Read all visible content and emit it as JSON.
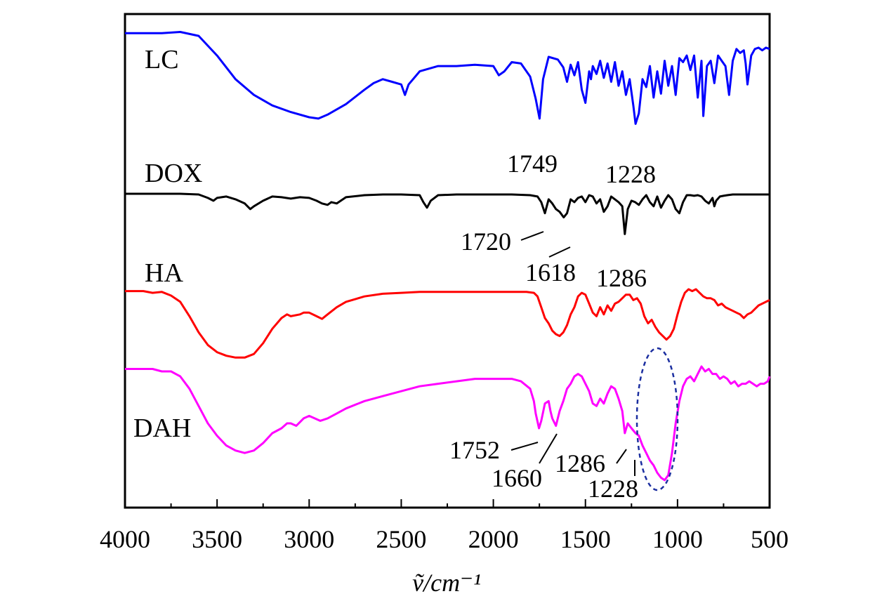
{
  "chart_data": {
    "type": "line",
    "title": "",
    "xlabel": "ṽ/cm⁻¹",
    "ylabel": "",
    "xlim": [
      4000,
      500
    ],
    "x_reversed": true,
    "xticks": [
      "4000",
      "3500",
      "3000",
      "2500",
      "2000",
      "1500",
      "1000",
      "500"
    ],
    "grid": false,
    "legend": "none",
    "series": [
      {
        "name": "LC",
        "color": "#0000ff",
        "x": [
          4000,
          3900,
          3800,
          3700,
          3600,
          3500,
          3400,
          3300,
          3200,
          3100,
          3000,
          2950,
          2900,
          2800,
          2700,
          2650,
          2600,
          2550,
          2500,
          2480,
          2460,
          2400,
          2300,
          2200,
          2100,
          2000,
          1970,
          1940,
          1900,
          1850,
          1800,
          1770,
          1749,
          1730,
          1700,
          1650,
          1620,
          1600,
          1580,
          1560,
          1540,
          1520,
          1500,
          1480,
          1470,
          1460,
          1440,
          1420,
          1400,
          1380,
          1360,
          1340,
          1320,
          1300,
          1280,
          1260,
          1240,
          1228,
          1210,
          1190,
          1170,
          1150,
          1130,
          1110,
          1090,
          1070,
          1050,
          1030,
          1010,
          990,
          970,
          950,
          930,
          910,
          890,
          870,
          860,
          840,
          820,
          800,
          780,
          760,
          740,
          720,
          700,
          680,
          660,
          640,
          630,
          620,
          600,
          580,
          560,
          540,
          520,
          500
        ],
        "y": [
          95,
          95,
          95,
          96,
          93,
          78,
          60,
          48,
          40,
          35,
          31,
          30,
          33,
          41,
          52,
          57,
          60,
          58,
          56,
          48,
          56,
          66,
          70,
          70,
          71,
          70,
          63,
          66,
          73,
          72,
          62,
          45,
          30,
          60,
          77,
          75,
          69,
          58,
          71,
          63,
          73,
          52,
          42,
          66,
          60,
          70,
          64,
          74,
          61,
          72,
          58,
          73,
          55,
          66,
          48,
          60,
          40,
          26,
          34,
          60,
          54,
          70,
          46,
          66,
          49,
          74,
          55,
          70,
          48,
          76,
          73,
          78,
          67,
          78,
          46,
          74,
          32,
          70,
          74,
          57,
          78,
          74,
          70,
          48,
          74,
          83,
          80,
          82,
          72,
          56,
          78,
          83,
          84,
          82,
          84,
          83
        ]
      },
      {
        "name": "DOX",
        "color": "#000000",
        "x": [
          4000,
          3900,
          3800,
          3700,
          3600,
          3550,
          3520,
          3500,
          3450,
          3400,
          3350,
          3320,
          3300,
          3250,
          3200,
          3150,
          3100,
          3050,
          3000,
          2960,
          2930,
          2900,
          2880,
          2850,
          2800,
          2700,
          2600,
          2500,
          2400,
          2380,
          2360,
          2340,
          2300,
          2200,
          2100,
          2000,
          1900,
          1800,
          1760,
          1740,
          1720,
          1700,
          1680,
          1660,
          1640,
          1618,
          1600,
          1580,
          1560,
          1540,
          1520,
          1500,
          1480,
          1460,
          1440,
          1420,
          1400,
          1380,
          1360,
          1340,
          1320,
          1300,
          1286,
          1270,
          1250,
          1230,
          1210,
          1190,
          1170,
          1150,
          1130,
          1110,
          1090,
          1070,
          1050,
          1030,
          1010,
          990,
          970,
          950,
          930,
          910,
          890,
          870,
          850,
          830,
          810,
          800,
          790,
          770,
          750,
          730,
          700,
          650,
          600,
          550,
          500
        ],
        "y": [
          98,
          98,
          98,
          98,
          97,
          92,
          88,
          92,
          94,
          90,
          84,
          76,
          80,
          88,
          94,
          93,
          91,
          93,
          92,
          88,
          84,
          82,
          86,
          84,
          93,
          96,
          97,
          97,
          96,
          86,
          78,
          88,
          96,
          97,
          97,
          97,
          97,
          96,
          94,
          86,
          70,
          90,
          84,
          76,
          72,
          64,
          70,
          90,
          86,
          92,
          94,
          86,
          96,
          94,
          84,
          90,
          72,
          80,
          94,
          90,
          86,
          80,
          40,
          76,
          88,
          86,
          82,
          90,
          96,
          86,
          80,
          94,
          78,
          88,
          96,
          90,
          76,
          70,
          86,
          96,
          96,
          95,
          96,
          94,
          88,
          84,
          92,
          80,
          88,
          94,
          95,
          96,
          97,
          97,
          97,
          97,
          97
        ]
      },
      {
        "name": "HA",
        "color": "#ff0000",
        "x": [
          4000,
          3900,
          3850,
          3800,
          3750,
          3700,
          3650,
          3600,
          3550,
          3500,
          3450,
          3400,
          3350,
          3300,
          3250,
          3200,
          3150,
          3120,
          3100,
          3050,
          3030,
          3000,
          2960,
          2930,
          2900,
          2850,
          2800,
          2700,
          2600,
          2500,
          2400,
          2300,
          2200,
          2100,
          2000,
          1900,
          1820,
          1780,
          1760,
          1740,
          1720,
          1700,
          1680,
          1660,
          1640,
          1620,
          1600,
          1580,
          1560,
          1540,
          1520,
          1500,
          1480,
          1460,
          1440,
          1420,
          1400,
          1380,
          1360,
          1340,
          1320,
          1300,
          1280,
          1260,
          1240,
          1220,
          1200,
          1180,
          1160,
          1140,
          1120,
          1100,
          1080,
          1060,
          1040,
          1020,
          1000,
          980,
          960,
          940,
          920,
          900,
          880,
          860,
          840,
          820,
          800,
          780,
          760,
          740,
          720,
          700,
          680,
          660,
          640,
          620,
          600,
          580,
          560,
          540,
          520,
          500
        ],
        "y": [
          98,
          98,
          96,
          97,
          93,
          86,
          70,
          52,
          38,
          30,
          26,
          24,
          24,
          28,
          40,
          56,
          68,
          72,
          70,
          72,
          74,
          74,
          70,
          67,
          72,
          80,
          86,
          92,
          95,
          96,
          97,
          97,
          97,
          97,
          97,
          97,
          97,
          96,
          92,
          80,
          68,
          62,
          54,
          50,
          48,
          52,
          60,
          72,
          80,
          92,
          96,
          94,
          84,
          74,
          70,
          80,
          72,
          82,
          76,
          84,
          86,
          90,
          94,
          94,
          88,
          90,
          84,
          70,
          62,
          66,
          58,
          52,
          48,
          44,
          48,
          56,
          72,
          86,
          96,
          100,
          98,
          100,
          96,
          92,
          90,
          90,
          88,
          82,
          84,
          80,
          78,
          76,
          74,
          72,
          68,
          72,
          74,
          78,
          82,
          84,
          86,
          88
        ]
      },
      {
        "name": "DAH",
        "color": "#ff00ff",
        "x": [
          4000,
          3900,
          3850,
          3800,
          3750,
          3700,
          3650,
          3600,
          3550,
          3500,
          3450,
          3400,
          3350,
          3300,
          3250,
          3200,
          3150,
          3120,
          3100,
          3070,
          3050,
          3030,
          3000,
          2970,
          2940,
          2900,
          2850,
          2800,
          2700,
          2600,
          2500,
          2400,
          2300,
          2200,
          2100,
          2000,
          1900,
          1850,
          1800,
          1780,
          1770,
          1752,
          1740,
          1720,
          1700,
          1690,
          1680,
          1660,
          1640,
          1620,
          1600,
          1580,
          1560,
          1540,
          1520,
          1500,
          1480,
          1460,
          1440,
          1420,
          1400,
          1380,
          1360,
          1340,
          1320,
          1300,
          1286,
          1270,
          1250,
          1228,
          1210,
          1190,
          1170,
          1150,
          1130,
          1110,
          1090,
          1070,
          1050,
          1030,
          1010,
          990,
          970,
          950,
          930,
          910,
          890,
          870,
          850,
          830,
          810,
          790,
          770,
          750,
          730,
          710,
          690,
          670,
          650,
          630,
          610,
          590,
          570,
          550,
          530,
          510,
          500
        ],
        "y": [
          98,
          98,
          98,
          96,
          96,
          92,
          82,
          68,
          54,
          44,
          36,
          32,
          30,
          32,
          38,
          46,
          50,
          54,
          54,
          52,
          55,
          58,
          60,
          58,
          56,
          58,
          62,
          66,
          72,
          76,
          80,
          84,
          86,
          88,
          90,
          90,
          90,
          88,
          82,
          72,
          62,
          50,
          56,
          70,
          72,
          64,
          58,
          52,
          64,
          72,
          82,
          86,
          92,
          94,
          92,
          86,
          80,
          70,
          68,
          74,
          70,
          78,
          84,
          82,
          74,
          64,
          46,
          54,
          50,
          46,
          44,
          36,
          30,
          24,
          20,
          14,
          10,
          8,
          12,
          30,
          54,
          72,
          84,
          90,
          92,
          88,
          94,
          100,
          96,
          98,
          94,
          94,
          90,
          92,
          90,
          86,
          88,
          84,
          86,
          86,
          88,
          86,
          84,
          86,
          86,
          88,
          92
        ]
      }
    ],
    "annotations": [
      "1749",
      "1228",
      "1720",
      "1618",
      "1286",
      "1752",
      "1660",
      "1286",
      "1228"
    ]
  }
}
